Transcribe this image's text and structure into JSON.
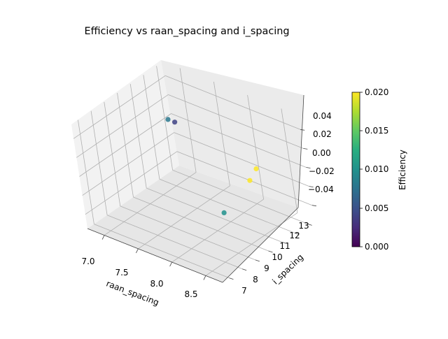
{
  "chart_data": {
    "type": "scatter3d",
    "title": "Efficiency vs raan_spacing and i_spacing",
    "xlabel": "raan_spacing",
    "ylabel": "i_spacing",
    "zlabel": "",
    "x_ticks": [
      "7.0",
      "7.5",
      "8.0",
      "8.5"
    ],
    "y_ticks": [
      "7",
      "8",
      "9",
      "10",
      "11",
      "12",
      "13"
    ],
    "z_ticks": [
      "−0.04",
      "−0.02",
      "0.00",
      "0.02",
      "0.04"
    ],
    "xlim": [
      6.75,
      8.75
    ],
    "ylim": [
      6.5,
      13.5
    ],
    "zlim": [
      -0.055,
      0.055
    ],
    "colorbar": {
      "label": "Efficiency",
      "colormap": "viridis",
      "range": [
        0.0,
        0.02
      ],
      "ticks": [
        "0.000",
        "0.005",
        "0.010",
        "0.015",
        "0.020"
      ]
    },
    "points": [
      {
        "x": 6.8,
        "y": 13.0,
        "z": 0.0,
        "efficiency": 0.008
      },
      {
        "x": 6.9,
        "y": 13.0,
        "z": 0.0,
        "efficiency": 0.004
      },
      {
        "x": 8.3,
        "y": 12.0,
        "z": 0.0,
        "efficiency": 0.02
      },
      {
        "x": 8.4,
        "y": 11.0,
        "z": 0.0,
        "efficiency": 0.02
      },
      {
        "x": 8.6,
        "y": 8.0,
        "z": 0.0,
        "efficiency": 0.01
      }
    ],
    "grid": true
  }
}
